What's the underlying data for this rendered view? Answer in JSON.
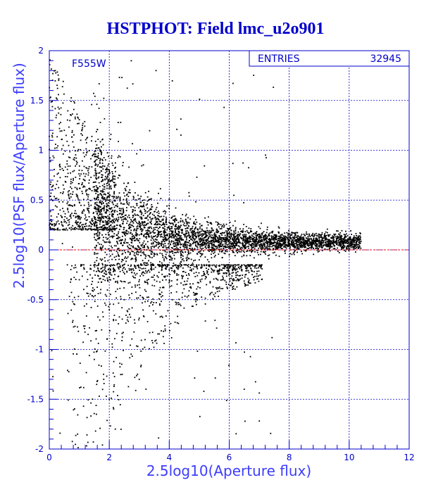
{
  "title": "HSTPHOT: Field lmc_u2o901",
  "chart_data": {
    "type": "scatter",
    "title": "HSTPHOT: Field lmc_u2o901",
    "xlabel": "2.5log10(Aperture flux)",
    "ylabel": "2.5log10(PSF flux/Aperture flux)",
    "xlim": [
      0,
      12
    ],
    "ylim": [
      -2,
      2
    ],
    "x_ticks": [
      "0",
      "2",
      "4",
      "6",
      "8",
      "10",
      "12"
    ],
    "y_ticks": [
      "2",
      "1.5",
      "1",
      "0.5",
      "0",
      "-0.5",
      "-1",
      "-1.5",
      "-2"
    ],
    "grid": true,
    "annotation": "F555W",
    "stats": {
      "label": "ENTRIES",
      "value": "32945"
    },
    "reference_line": {
      "y": 0,
      "color": "#ff0000",
      "style": "dashed"
    },
    "series": [
      {
        "points_sample": [
          [
            0.2,
            1.8
          ],
          [
            0.5,
            1.2
          ],
          [
            0.8,
            0.7
          ],
          [
            1.0,
            0.5
          ],
          [
            1.2,
            0.35
          ],
          [
            1.5,
            0.25
          ],
          [
            2.0,
            0.2
          ],
          [
            2.5,
            0.18
          ],
          [
            3.0,
            0.15
          ],
          [
            4.0,
            0.12
          ],
          [
            5.0,
            0.1
          ],
          [
            6.0,
            0.08
          ],
          [
            7.0,
            0.08
          ],
          [
            8.0,
            0.1
          ],
          [
            9.0,
            0.12
          ],
          [
            10.0,
            0.12
          ],
          [
            10.3,
            0.1
          ],
          [
            1.0,
            -0.3
          ],
          [
            1.5,
            -0.4
          ],
          [
            2.0,
            -0.6
          ],
          [
            2.5,
            -0.5
          ],
          [
            3.0,
            -0.35
          ],
          [
            4.0,
            -0.2
          ],
          [
            5.0,
            -0.1
          ],
          [
            6.0,
            -0.05
          ],
          [
            2.0,
            -1.5
          ],
          [
            1.5,
            -1.1
          ],
          [
            2.2,
            -1.8
          ],
          [
            3.0,
            -1.3
          ],
          [
            6.5,
            -1.4
          ]
        ]
      }
    ]
  },
  "colors": {
    "axis": "#0000cc",
    "grid": "#0000cc",
    "points": "#000000",
    "reference_line": "#ff0000",
    "title": "#0000cc"
  }
}
